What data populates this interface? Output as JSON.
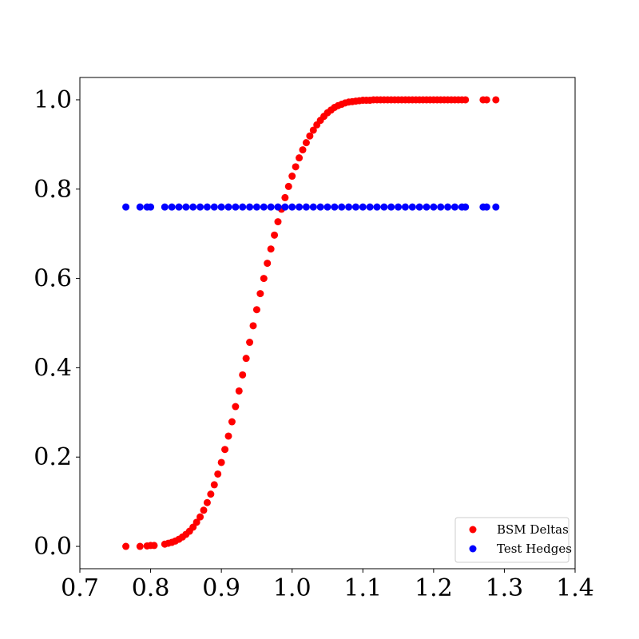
{
  "chart_data": {
    "type": "scatter",
    "title": "",
    "xlabel": "",
    "ylabel": "",
    "xlim": [
      0.7,
      1.4
    ],
    "ylim": [
      -0.05,
      1.05
    ],
    "x_ticks": [
      "0.7",
      "0.8",
      "0.9",
      "1.0",
      "1.1",
      "1.2",
      "1.3",
      "1.4"
    ],
    "y_ticks": [
      "0.0",
      "0.2",
      "0.4",
      "0.6",
      "0.8",
      "1.0"
    ],
    "x_tick_values": [
      0.7,
      0.8,
      0.9,
      1.0,
      1.1,
      1.2,
      1.3,
      1.4
    ],
    "y_tick_values": [
      0.0,
      0.2,
      0.4,
      0.6,
      0.8,
      1.0
    ],
    "grid": false,
    "legend_position": "bottom-right",
    "series": [
      {
        "name": "BSM Deltas",
        "color": "#ff0000",
        "x": [
          0.765,
          0.785,
          0.795,
          0.8,
          0.805,
          0.82,
          0.825,
          0.83,
          0.835,
          0.84,
          0.845,
          0.85,
          0.855,
          0.86,
          0.865,
          0.87,
          0.875,
          0.88,
          0.885,
          0.89,
          0.895,
          0.9,
          0.905,
          0.91,
          0.915,
          0.92,
          0.925,
          0.93,
          0.935,
          0.94,
          0.945,
          0.95,
          0.955,
          0.96,
          0.965,
          0.97,
          0.975,
          0.98,
          0.985,
          0.99,
          0.995,
          1.0,
          1.005,
          1.01,
          1.015,
          1.02,
          1.025,
          1.03,
          1.035,
          1.04,
          1.045,
          1.05,
          1.055,
          1.06,
          1.065,
          1.07,
          1.075,
          1.08,
          1.085,
          1.09,
          1.095,
          1.1,
          1.105,
          1.11,
          1.115,
          1.12,
          1.125,
          1.13,
          1.135,
          1.14,
          1.145,
          1.15,
          1.155,
          1.16,
          1.165,
          1.17,
          1.175,
          1.18,
          1.185,
          1.19,
          1.195,
          1.2,
          1.205,
          1.21,
          1.215,
          1.22,
          1.225,
          1.23,
          1.235,
          1.24,
          1.245,
          1.27,
          1.275,
          1.288
        ],
        "y": [
          0.0,
          0.0,
          0.001,
          0.002,
          0.002,
          0.005,
          0.007,
          0.009,
          0.012,
          0.016,
          0.021,
          0.027,
          0.034,
          0.043,
          0.054,
          0.066,
          0.081,
          0.098,
          0.117,
          0.138,
          0.162,
          0.188,
          0.217,
          0.247,
          0.279,
          0.313,
          0.348,
          0.384,
          0.421,
          0.457,
          0.494,
          0.53,
          0.566,
          0.6,
          0.634,
          0.666,
          0.697,
          0.727,
          0.755,
          0.781,
          0.806,
          0.829,
          0.85,
          0.87,
          0.888,
          0.904,
          0.919,
          0.932,
          0.944,
          0.954,
          0.963,
          0.971,
          0.977,
          0.983,
          0.987,
          0.99,
          0.993,
          0.995,
          0.996,
          0.997,
          0.998,
          0.999,
          0.999,
          0.999,
          1.0,
          1.0,
          1.0,
          1.0,
          1.0,
          1.0,
          1.0,
          1.0,
          1.0,
          1.0,
          1.0,
          1.0,
          1.0,
          1.0,
          1.0,
          1.0,
          1.0,
          1.0,
          1.0,
          1.0,
          1.0,
          1.0,
          1.0,
          1.0,
          1.0,
          1.0,
          1.0,
          1.0,
          1.0,
          1.0
        ]
      },
      {
        "name": "Test Hedges",
        "color": "#0000ff",
        "x": [
          0.765,
          0.785,
          0.795,
          0.8,
          0.82,
          0.83,
          0.84,
          0.85,
          0.86,
          0.87,
          0.88,
          0.89,
          0.9,
          0.91,
          0.92,
          0.93,
          0.94,
          0.95,
          0.96,
          0.97,
          0.98,
          0.99,
          1.0,
          1.01,
          1.02,
          1.03,
          1.04,
          1.05,
          1.06,
          1.07,
          1.08,
          1.09,
          1.1,
          1.11,
          1.12,
          1.13,
          1.14,
          1.15,
          1.16,
          1.17,
          1.18,
          1.19,
          1.2,
          1.21,
          1.22,
          1.23,
          1.24,
          1.245,
          1.27,
          1.275,
          1.288
        ],
        "y": [
          0.76,
          0.76,
          0.76,
          0.76,
          0.76,
          0.76,
          0.76,
          0.76,
          0.76,
          0.76,
          0.76,
          0.76,
          0.76,
          0.76,
          0.76,
          0.76,
          0.76,
          0.76,
          0.76,
          0.76,
          0.76,
          0.76,
          0.76,
          0.76,
          0.76,
          0.76,
          0.76,
          0.76,
          0.76,
          0.76,
          0.76,
          0.76,
          0.76,
          0.76,
          0.76,
          0.76,
          0.76,
          0.76,
          0.76,
          0.76,
          0.76,
          0.76,
          0.76,
          0.76,
          0.76,
          0.76,
          0.76,
          0.76,
          0.76,
          0.76,
          0.76
        ]
      }
    ]
  }
}
